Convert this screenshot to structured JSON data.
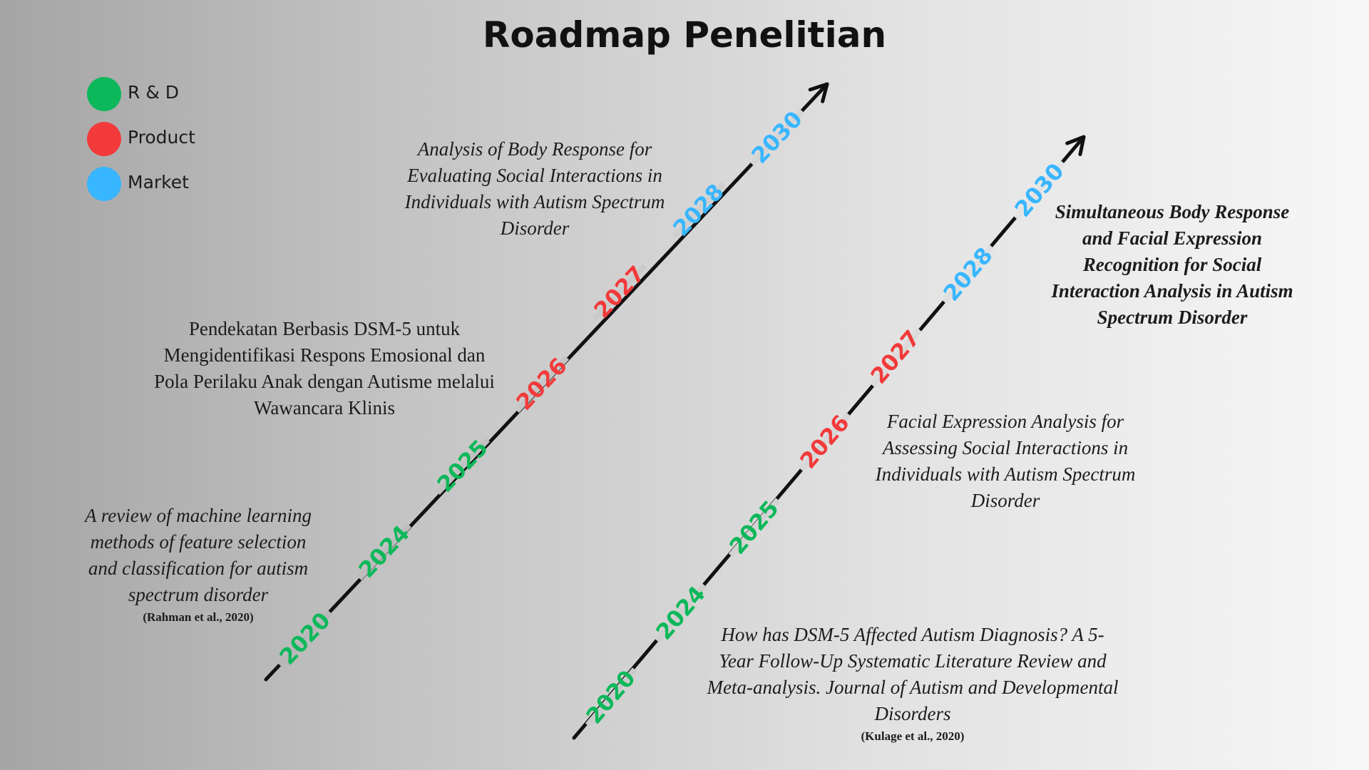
{
  "title": "Roadmap Penelitian",
  "legend": [
    {
      "label": "R & D",
      "color": "#0db85a"
    },
    {
      "label": "Product",
      "color": "#f23a3a"
    },
    {
      "label": "Market",
      "color": "#38b6ff"
    }
  ],
  "timelines": [
    {
      "milestones": [
        {
          "year": "2020",
          "category": "R & D"
        },
        {
          "year": "2024",
          "category": "R & D"
        },
        {
          "year": "2025",
          "category": "R & D"
        },
        {
          "year": "2026",
          "category": "Product"
        },
        {
          "year": "2027",
          "category": "Product"
        },
        {
          "year": "2028",
          "category": "Market"
        },
        {
          "year": "2030",
          "category": "Market"
        }
      ]
    },
    {
      "milestones": [
        {
          "year": "2020",
          "category": "R & D"
        },
        {
          "year": "2024",
          "category": "R & D"
        },
        {
          "year": "2025",
          "category": "R & D"
        },
        {
          "year": "2026",
          "category": "Product"
        },
        {
          "year": "2027",
          "category": "Product"
        },
        {
          "year": "2028",
          "category": "Market"
        },
        {
          "year": "2030",
          "category": "Market"
        }
      ]
    }
  ],
  "texts": {
    "review_title": "A review of machine learning methods of feature selection and classification for autism spectrum disorder",
    "review_cite": "(Rahman et al., 2020)",
    "dsm_approach": "Pendekatan Berbasis DSM-5 untuk Mengidentifikasi Respons Emosional dan Pola Perilaku Anak dengan Autisme melalui Wawancara Klinis",
    "body_response": "Analysis of Body Response for Evaluating Social Interactions in Individuals with Autism Spectrum Disorder",
    "simultaneous": "Simultaneous Body Response and Facial Expression Recognition for Social Interaction Analysis in Autism Spectrum Disorder",
    "facial_expression": "Facial Expression Analysis for Assessing Social Interactions in Individuals with Autism Spectrum Disorder",
    "dsm_effect_title": "How has DSM-5 Affected Autism Diagnosis? A 5-Year Follow-Up Systematic Literature Review and Meta-analysis. Journal of Autism and Developmental Disorders",
    "dsm_effect_cite": "(Kulage et al., 2020)"
  }
}
